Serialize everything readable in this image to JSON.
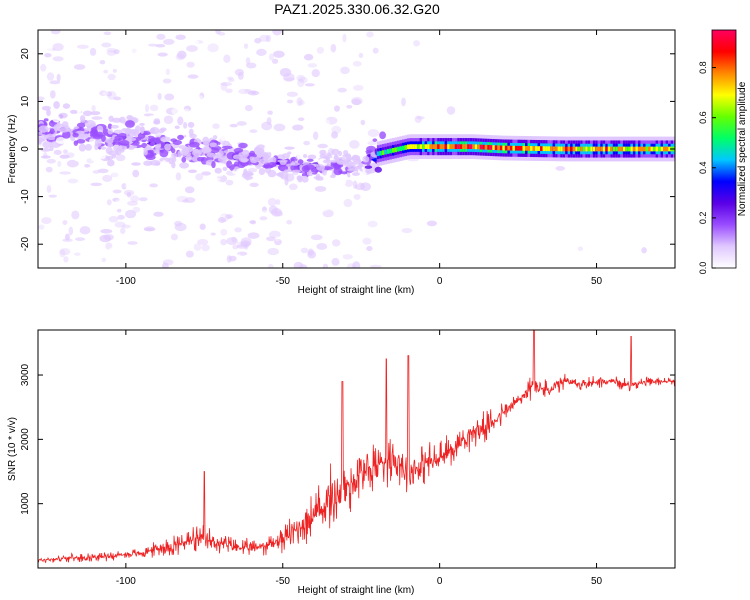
{
  "title": "PAZ1.2025.330.06.32.G20",
  "chart_data": [
    {
      "type": "heatmap",
      "title": "PAZ1.2025.330.06.32.G20",
      "xlabel": "Height of straight line (km)",
      "ylabel": "Frequency (Hz)",
      "xlim": [
        -128,
        75
      ],
      "ylim": [
        -25,
        25
      ],
      "xticks": [
        -100,
        -50,
        0,
        50
      ],
      "xtick_labels": [
        "-100",
        "-50",
        "0",
        "50"
      ],
      "yticks": [
        -20,
        -10,
        0,
        10,
        20
      ],
      "ytick_labels": [
        "-20",
        "-10",
        "0",
        "10",
        "20"
      ],
      "colorbar": {
        "label": "Normalized spectral amplitude",
        "range": [
          0,
          0.95
        ],
        "ticks": [
          0,
          0.2,
          0.4,
          0.6,
          0.8
        ],
        "tick_labels": [
          "0.0",
          "0.2",
          "0.4",
          "0.6",
          "0.8"
        ],
        "colormap": [
          "#ffffff",
          "#e0c8ff",
          "#9a4dff",
          "#5a00e6",
          "#0000ff",
          "#00c8ff",
          "#00ff66",
          "#66ff00",
          "#ffff00",
          "#ff8800",
          "#ff0000",
          "#ff0060"
        ]
      },
      "ridge": {
        "description_points_km": [
          -120,
          -100,
          -80,
          -60,
          -40,
          -25,
          -20,
          -10,
          0,
          10,
          20,
          40,
          60,
          75
        ],
        "center_freq_hz": [
          4,
          2,
          0,
          -2,
          -4,
          -3,
          -1,
          0.5,
          0.5,
          0.5,
          0.2,
          0,
          0,
          0
        ],
        "peak_amplitude": [
          0.2,
          0.22,
          0.22,
          0.2,
          0.24,
          0.15,
          0.5,
          0.6,
          0.8,
          0.85,
          0.8,
          0.75,
          0.7,
          0.7
        ]
      }
    },
    {
      "type": "line",
      "xlabel": "Height of straight line (km)",
      "ylabel": "SNR (10 * v/v)",
      "xlim": [
        -128,
        75
      ],
      "ylim": [
        0,
        3700
      ],
      "xticks": [
        -100,
        -50,
        0,
        50
      ],
      "xtick_labels": [
        "-100",
        "-50",
        "0",
        "50"
      ],
      "yticks": [
        1000,
        2000,
        3000
      ],
      "ytick_labels": [
        "1000",
        "2000",
        "3000"
      ],
      "color": "#ee2222",
      "series": [
        {
          "name": "SNR",
          "x": [
            -128,
            -120,
            -110,
            -100,
            -95,
            -90,
            -85,
            -80,
            -75,
            -70,
            -65,
            -60,
            -55,
            -50,
            -45,
            -40,
            -35,
            -30,
            -25,
            -20,
            -15,
            -10,
            -5,
            0,
            5,
            10,
            15,
            20,
            25,
            30,
            35,
            40,
            45,
            50,
            55,
            60,
            65,
            70,
            75
          ],
          "y": [
            120,
            150,
            170,
            210,
            230,
            300,
            350,
            420,
            440,
            380,
            330,
            300,
            360,
            450,
            620,
            800,
            1050,
            1250,
            1450,
            1600,
            1750,
            1500,
            1620,
            1700,
            1900,
            2100,
            2200,
            2400,
            2600,
            2850,
            2750,
            2900,
            2850,
            2900,
            2900,
            2850,
            2880,
            2900,
            2900
          ],
          "noise": [
            60,
            70,
            80,
            90,
            100,
            150,
            220,
            280,
            260,
            220,
            180,
            160,
            200,
            260,
            380,
            520,
            620,
            700,
            650,
            520,
            500,
            450,
            400,
            380,
            300,
            300,
            280,
            250,
            220,
            220,
            180,
            150,
            130,
            120,
            110,
            110,
            100,
            80,
            80
          ],
          "peaks": [
            {
              "x": -75,
              "y": 1500
            },
            {
              "x": -31,
              "y": 2900
            },
            {
              "x": -17,
              "y": 3250
            },
            {
              "x": -10,
              "y": 3300
            },
            {
              "x": 30,
              "y": 3700
            },
            {
              "x": 61,
              "y": 3600
            }
          ]
        }
      ]
    }
  ]
}
